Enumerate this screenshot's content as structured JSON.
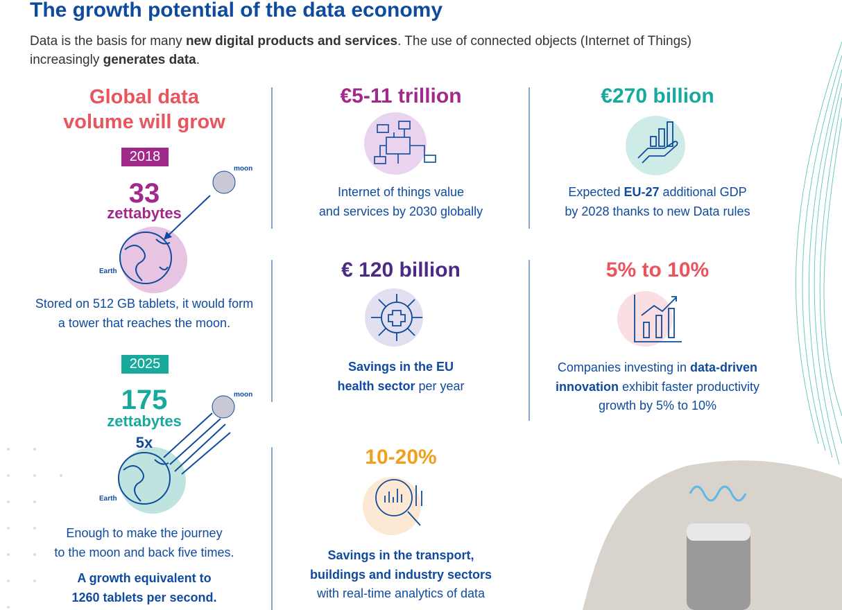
{
  "header": {
    "title": "The growth potential of the data economy",
    "intro": [
      [
        {
          "text": "Data is the basis for many ",
          "bold": false
        },
        {
          "text": "new digital products and services",
          "bold": true
        },
        {
          "text": ". The use of connected objects (Internet of Things)",
          "bold": false
        }
      ],
      [
        {
          "text": "increasingly ",
          "bold": false
        },
        {
          "text": "generates data",
          "bold": true
        },
        {
          "text": ".",
          "bold": false
        }
      ]
    ]
  },
  "volume": {
    "heading": [
      "Global data",
      "volume will grow"
    ],
    "periods": [
      {
        "year": "2018",
        "value": "33",
        "unit": "zettabytes",
        "moon": "moon",
        "earth": "Earth",
        "caption": [
          [
            {
              "text": "Stored on 512 GB tablets, it would form",
              "bold": false
            }
          ],
          [
            {
              "text": "a tower that reaches the moon.",
              "bold": false
            }
          ]
        ]
      },
      {
        "year": "2025",
        "value": "175",
        "unit": "zettabytes",
        "multiplier": "5x",
        "moon": "moon",
        "earth": "Earth",
        "caption": [
          [
            {
              "text": "Enough to make the journey",
              "bold": false
            }
          ],
          [
            {
              "text": "to the moon and back five times.",
              "bold": false
            }
          ]
        ],
        "highlight": [
          [
            {
              "text": "A growth equivalent to",
              "bold": true
            }
          ],
          [
            {
              "text": "1260 tablets per second.",
              "bold": true
            }
          ]
        ]
      }
    ]
  },
  "stats": [
    {
      "value": "€5-11 trillion",
      "description": [
        [
          {
            "text": "Internet of things value",
            "bold": false
          }
        ],
        [
          {
            "text": "and services by 2030 globally",
            "bold": false
          }
        ]
      ]
    },
    {
      "value": "€270 billion",
      "description": [
        [
          {
            "text": "Expected ",
            "bold": false
          },
          {
            "text": "EU-27",
            "bold": true
          },
          {
            "text": " additional GDP",
            "bold": false
          }
        ],
        [
          {
            "text": "by 2028 thanks to new Data rules",
            "bold": false
          }
        ]
      ]
    },
    {
      "value": "€ 120 billion",
      "description": [
        [
          {
            "text": "Savings in the EU",
            "bold": true
          }
        ],
        [
          {
            "text": "health sector",
            "bold": true
          },
          {
            "text": " per year",
            "bold": false
          }
        ]
      ]
    },
    {
      "value": "5% to 10%",
      "description": [
        [
          {
            "text": "Companies investing in ",
            "bold": false
          },
          {
            "text": "data-driven",
            "bold": true
          }
        ],
        [
          {
            "text": "innovation",
            "bold": true
          },
          {
            "text": " exhibit faster productivity",
            "bold": false
          }
        ],
        [
          {
            "text": "growth by 5% to 10%",
            "bold": false
          }
        ]
      ]
    },
    {
      "value": "10-20%",
      "description": [
        [
          {
            "text": "Savings in the transport,",
            "bold": true
          }
        ],
        [
          {
            "text": "buildings and industry sectors",
            "bold": true
          }
        ],
        [
          {
            "text": "with real-time analytics of data",
            "bold": false
          }
        ]
      ]
    }
  ]
}
